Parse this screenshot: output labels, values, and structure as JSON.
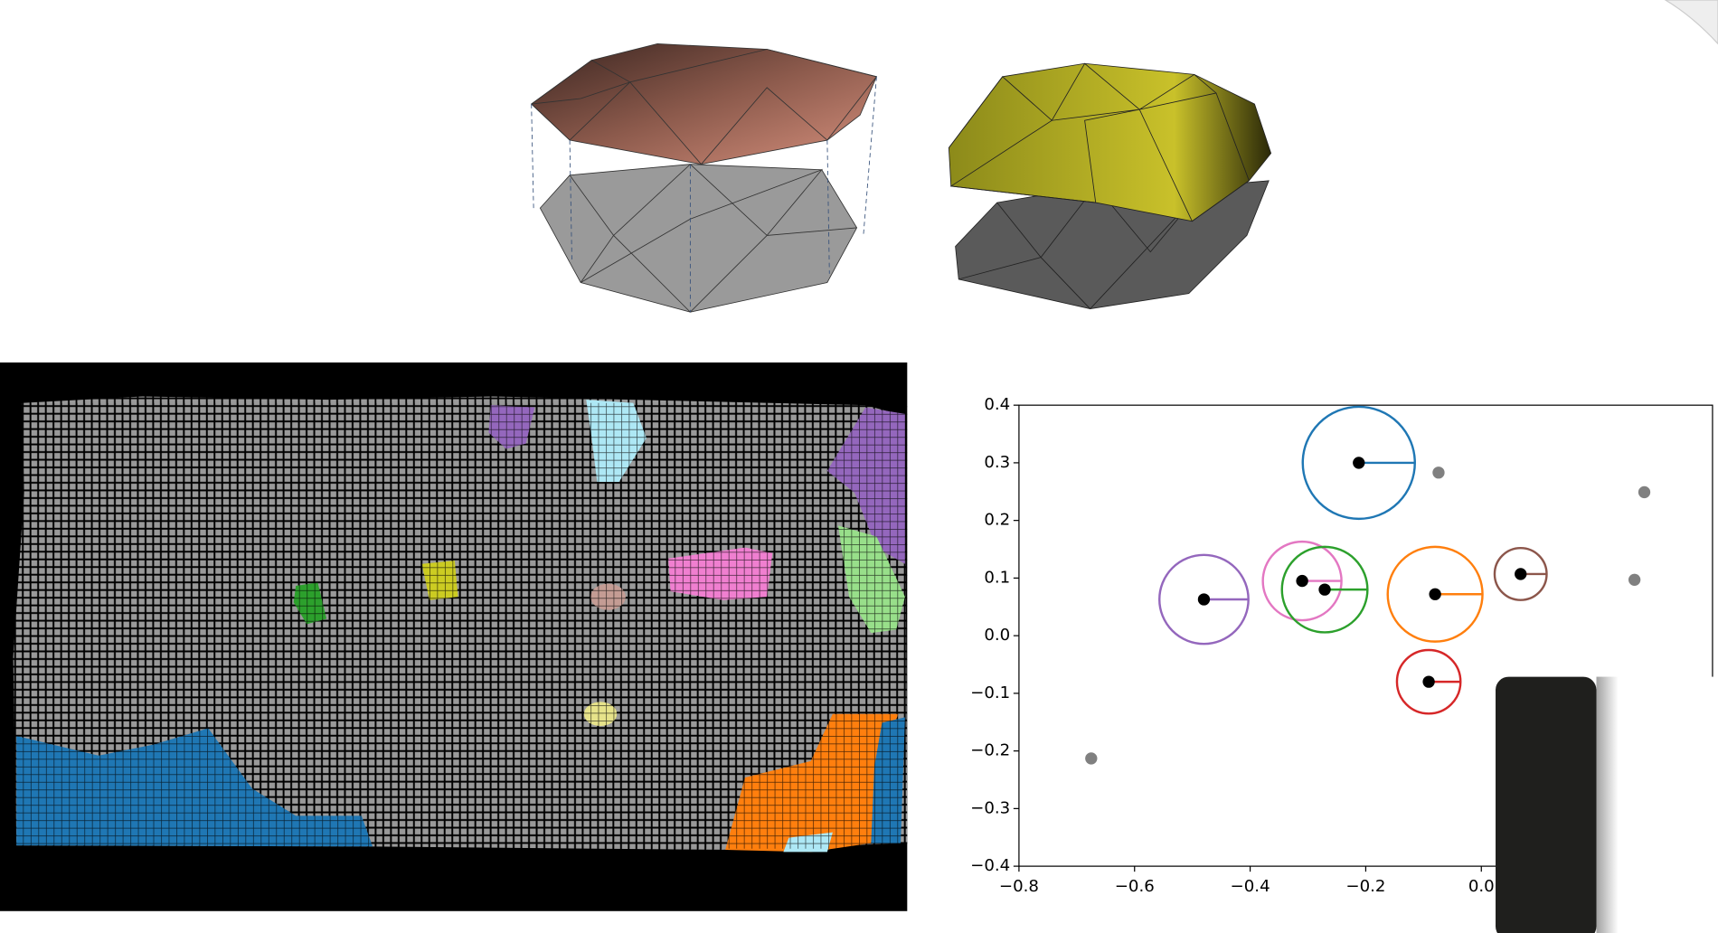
{
  "chart_data": {
    "type": "scatter",
    "x": [
      -0.212,
      -0.48,
      -0.31,
      -0.271,
      -0.08,
      0.068,
      -0.091,
      -0.074,
      0.282,
      0.265,
      -0.675
    ],
    "y": [
      0.3,
      0.063,
      0.095,
      0.08,
      0.072,
      0.107,
      -0.08,
      0.283,
      0.249,
      0.097,
      -0.213
    ],
    "radius": [
      0.097,
      0.077,
      0.068,
      0.074,
      0.082,
      0.045,
      0.055,
      null,
      null,
      null,
      null
    ],
    "circle_colors": [
      "#1f77b4",
      "#9467bd",
      "#e377c2",
      "#2ca02c",
      "#ff7f0e",
      "#8c564b",
      "#d62728",
      null,
      null,
      null,
      null
    ],
    "point_colors": [
      "#000000",
      "#000000",
      "#000000",
      "#000000",
      "#000000",
      "#000000",
      "#000000",
      "#808080",
      "#808080",
      "#808080",
      "#808080"
    ],
    "xlim": [
      -0.8,
      0.4
    ],
    "ylim": [
      -0.4,
      0.4
    ],
    "xticks": [
      {
        "value": -0.8,
        "label": "−0.8"
      },
      {
        "value": -0.6,
        "label": "−0.6"
      },
      {
        "value": -0.4,
        "label": "−0.4"
      },
      {
        "value": -0.2,
        "label": "−0.2"
      },
      {
        "value": 0,
        "label": "0.0"
      }
    ],
    "yticks": [
      {
        "value": -0.4,
        "label": "−0.4"
      },
      {
        "value": -0.3,
        "label": "−0.3"
      },
      {
        "value": -0.2,
        "label": "−0.2"
      },
      {
        "value": -0.1,
        "label": "−0.1"
      },
      {
        "value": 0,
        "label": "0.0"
      },
      0.1,
      0.2,
      0.3,
      0.4
    ]
  }
}
